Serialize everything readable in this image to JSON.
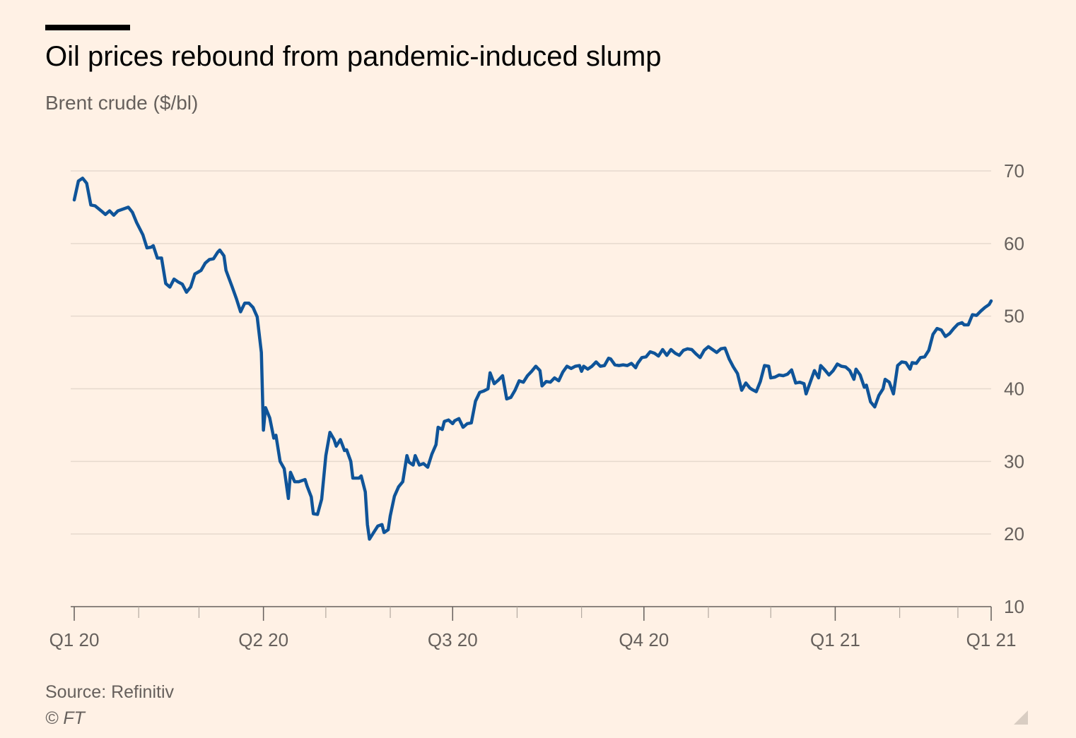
{
  "chart_data": {
    "type": "line",
    "title": "Oil prices rebound from pandemic-induced slump",
    "subtitle": "Brent crude ($/bl)",
    "ylabel": "",
    "xlabel": "",
    "ylim": [
      10,
      70
    ],
    "y_ticks": [
      "10",
      "20",
      "30",
      "40",
      "50",
      "60",
      "70"
    ],
    "y_axis_position": "right",
    "grid": true,
    "x_ticks": [
      {
        "label": "Q1 20",
        "date": "2020-01-01"
      },
      {
        "label": "Q2 20",
        "date": "2020-04-01"
      },
      {
        "label": "Q3 20",
        "date": "2020-07-01"
      },
      {
        "label": "Q4 20",
        "date": "2020-10-01"
      },
      {
        "label": "Q1 21",
        "date": "2021-01-01"
      },
      {
        "label": "Q1 21",
        "date": "2021-03-17"
      }
    ],
    "x_range": [
      "2020-01-01",
      "2021-03-17"
    ],
    "line_color": "#0f5499",
    "series": [
      {
        "name": "",
        "points": [
          [
            "2020-01-01",
            66
          ],
          [
            "2020-01-03",
            68.6
          ],
          [
            "2020-01-05",
            69
          ],
          [
            "2020-01-07",
            68.3
          ],
          [
            "2020-01-09",
            65.3
          ],
          [
            "2020-01-11",
            65.2
          ],
          [
            "2020-01-14",
            64.5
          ],
          [
            "2020-01-16",
            64
          ],
          [
            "2020-01-18",
            64.5
          ],
          [
            "2020-01-20",
            63.9
          ],
          [
            "2020-01-22",
            64.5
          ],
          [
            "2020-01-25",
            64.8
          ],
          [
            "2020-01-27",
            65
          ],
          [
            "2020-01-29",
            64.3
          ],
          [
            "2020-01-31",
            62.9
          ],
          [
            "2020-02-03",
            61.2
          ],
          [
            "2020-02-05",
            59.4
          ],
          [
            "2020-02-07",
            59.5
          ],
          [
            "2020-02-08",
            59.7
          ],
          [
            "2020-02-10",
            58
          ],
          [
            "2020-02-12",
            58
          ],
          [
            "2020-02-14",
            54.5
          ],
          [
            "2020-02-16",
            54
          ],
          [
            "2020-02-18",
            55.1
          ],
          [
            "2020-02-20",
            54.7
          ],
          [
            "2020-02-22",
            54.4
          ],
          [
            "2020-02-24",
            53.3
          ],
          [
            "2020-02-26",
            54
          ],
          [
            "2020-02-28",
            55.8
          ],
          [
            "2020-03-02",
            56.3
          ],
          [
            "2020-03-04",
            57.3
          ],
          [
            "2020-03-06",
            57.8
          ],
          [
            "2020-03-08",
            57.9
          ],
          [
            "2020-03-10",
            58.8
          ],
          [
            "2020-03-11",
            59.1
          ],
          [
            "2020-03-13",
            58.3
          ],
          [
            "2020-03-14",
            56.3
          ],
          [
            "2020-03-17",
            54
          ],
          [
            "2020-03-19",
            52.4
          ],
          [
            "2020-03-21",
            50.6
          ],
          [
            "2020-03-23",
            51.8
          ],
          [
            "2020-03-25",
            51.8
          ],
          [
            "2020-03-27",
            51.2
          ],
          [
            "2020-03-29",
            49.9
          ],
          [
            "2020-03-31",
            45
          ],
          [
            "2020-04-01",
            34.3
          ],
          [
            "2020-04-02",
            37.4
          ],
          [
            "2020-04-04",
            36
          ],
          [
            "2020-04-06",
            33.2
          ],
          [
            "2020-04-07",
            33.6
          ],
          [
            "2020-04-09",
            30
          ],
          [
            "2020-04-11",
            29
          ],
          [
            "2020-04-13",
            24.9
          ],
          [
            "2020-04-14",
            28.5
          ],
          [
            "2020-04-16",
            27.2
          ],
          [
            "2020-04-18",
            27.2
          ],
          [
            "2020-04-21",
            27.5
          ],
          [
            "2020-04-22",
            26.6
          ],
          [
            "2020-04-24",
            25.1
          ],
          [
            "2020-04-25",
            22.8
          ],
          [
            "2020-04-27",
            22.7
          ],
          [
            "2020-04-29",
            24.8
          ],
          [
            "2020-05-01",
            30.8
          ],
          [
            "2020-05-03",
            34
          ],
          [
            "2020-05-05",
            33
          ],
          [
            "2020-05-06",
            32.1
          ],
          [
            "2020-05-08",
            33
          ],
          [
            "2020-05-10",
            31.5
          ],
          [
            "2020-05-11",
            31.6
          ],
          [
            "2020-05-13",
            30
          ],
          [
            "2020-05-14",
            27.7
          ],
          [
            "2020-05-17",
            27.7
          ],
          [
            "2020-05-18",
            28
          ],
          [
            "2020-05-20",
            25.8
          ],
          [
            "2020-05-21",
            21.3
          ],
          [
            "2020-05-22",
            19.3
          ],
          [
            "2020-05-24",
            20.2
          ],
          [
            "2020-05-26",
            21.1
          ],
          [
            "2020-05-28",
            21.3
          ],
          [
            "2020-05-29",
            20.2
          ],
          [
            "2020-05-31",
            20.6
          ],
          [
            "2020-06-01",
            22.5
          ],
          [
            "2020-06-03",
            25.2
          ],
          [
            "2020-06-05",
            26.5
          ],
          [
            "2020-06-07",
            27.2
          ],
          [
            "2020-06-09",
            30.8
          ],
          [
            "2020-06-10",
            29.9
          ],
          [
            "2020-06-12",
            29.5
          ],
          [
            "2020-06-13",
            30.8
          ],
          [
            "2020-06-15",
            29.5
          ],
          [
            "2020-06-17",
            29.7
          ],
          [
            "2020-06-19",
            29.2
          ],
          [
            "2020-06-21",
            31
          ],
          [
            "2020-06-23",
            32.3
          ],
          [
            "2020-06-24",
            34.7
          ],
          [
            "2020-06-26",
            34.4
          ],
          [
            "2020-06-27",
            35.5
          ],
          [
            "2020-06-29",
            35.7
          ],
          [
            "2020-07-01",
            35.2
          ],
          [
            "2020-07-02",
            35.6
          ],
          [
            "2020-07-04",
            35.9
          ],
          [
            "2020-07-06",
            34.7
          ],
          [
            "2020-07-08",
            35.2
          ],
          [
            "2020-07-10",
            35.3
          ],
          [
            "2020-07-12",
            38.3
          ],
          [
            "2020-07-14",
            39.5
          ],
          [
            "2020-07-16",
            39.7
          ],
          [
            "2020-07-18",
            40
          ],
          [
            "2020-07-19",
            42.2
          ],
          [
            "2020-07-21",
            40.7
          ],
          [
            "2020-07-23",
            41.2
          ],
          [
            "2020-07-25",
            41.8
          ],
          [
            "2020-07-27",
            38.6
          ],
          [
            "2020-07-29",
            38.8
          ],
          [
            "2020-07-31",
            39.8
          ],
          [
            "2020-08-02",
            41.1
          ],
          [
            "2020-08-04",
            40.9
          ],
          [
            "2020-08-06",
            41.8
          ],
          [
            "2020-08-08",
            42.4
          ],
          [
            "2020-08-10",
            43.1
          ],
          [
            "2020-08-12",
            42.5
          ],
          [
            "2020-08-13",
            40.4
          ],
          [
            "2020-08-15",
            41
          ],
          [
            "2020-08-17",
            40.9
          ],
          [
            "2020-08-19",
            41.5
          ],
          [
            "2020-08-21",
            41.1
          ],
          [
            "2020-08-23",
            42.3
          ],
          [
            "2020-08-25",
            43.1
          ],
          [
            "2020-08-27",
            42.8
          ],
          [
            "2020-08-29",
            43.1
          ],
          [
            "2020-08-31",
            43.2
          ],
          [
            "2020-09-01",
            42.4
          ],
          [
            "2020-09-02",
            43.1
          ],
          [
            "2020-09-04",
            42.7
          ],
          [
            "2020-09-06",
            43.1
          ],
          [
            "2020-09-08",
            43.7
          ],
          [
            "2020-09-10",
            43.1
          ],
          [
            "2020-09-12",
            43.2
          ],
          [
            "2020-09-14",
            44.2
          ],
          [
            "2020-09-15",
            44.1
          ],
          [
            "2020-09-17",
            43.3
          ],
          [
            "2020-09-19",
            43.2
          ],
          [
            "2020-09-21",
            43.3
          ],
          [
            "2020-09-23",
            43.2
          ],
          [
            "2020-09-25",
            43.5
          ],
          [
            "2020-09-27",
            42.9
          ],
          [
            "2020-09-28",
            43.5
          ],
          [
            "2020-09-30",
            44.3
          ],
          [
            "2020-10-02",
            44.4
          ],
          [
            "2020-10-04",
            45.1
          ],
          [
            "2020-10-06",
            44.9
          ],
          [
            "2020-10-08",
            44.5
          ],
          [
            "2020-10-10",
            45.4
          ],
          [
            "2020-10-12",
            44.6
          ],
          [
            "2020-10-14",
            45.4
          ],
          [
            "2020-10-16",
            44.9
          ],
          [
            "2020-10-18",
            44.6
          ],
          [
            "2020-10-20",
            45.3
          ],
          [
            "2020-10-22",
            45.5
          ],
          [
            "2020-10-24",
            45.4
          ],
          [
            "2020-10-26",
            44.8
          ],
          [
            "2020-10-28",
            44.3
          ],
          [
            "2020-10-30",
            45.3
          ],
          [
            "2020-11-01",
            45.8
          ],
          [
            "2020-11-03",
            45.4
          ],
          [
            "2020-11-05",
            45
          ],
          [
            "2020-11-07",
            45.5
          ],
          [
            "2020-11-09",
            45.6
          ],
          [
            "2020-11-11",
            44.1
          ],
          [
            "2020-11-13",
            43
          ],
          [
            "2020-11-15",
            42.1
          ],
          [
            "2020-11-17",
            39.8
          ],
          [
            "2020-11-19",
            40.8
          ],
          [
            "2020-11-21",
            40.1
          ],
          [
            "2020-11-22",
            39.9
          ],
          [
            "2020-11-24",
            39.6
          ],
          [
            "2020-11-26",
            41
          ],
          [
            "2020-11-28",
            43.2
          ],
          [
            "2020-11-30",
            43.1
          ],
          [
            "2020-12-01",
            41.5
          ],
          [
            "2020-12-03",
            41.6
          ],
          [
            "2020-12-05",
            41.9
          ],
          [
            "2020-12-07",
            41.8
          ],
          [
            "2020-12-09",
            42
          ],
          [
            "2020-12-11",
            42.6
          ],
          [
            "2020-12-13",
            40.8
          ],
          [
            "2020-12-15",
            40.9
          ],
          [
            "2020-12-17",
            40.7
          ],
          [
            "2020-12-18",
            39.3
          ],
          [
            "2020-12-20",
            40.9
          ],
          [
            "2020-12-22",
            42.5
          ],
          [
            "2020-12-24",
            41.5
          ],
          [
            "2020-12-25",
            43.2
          ],
          [
            "2020-12-27",
            42.6
          ],
          [
            "2020-12-29",
            41.9
          ],
          [
            "2020-12-31",
            42.5
          ],
          [
            "2021-01-02",
            43.4
          ],
          [
            "2021-01-04",
            43.1
          ],
          [
            "2021-01-06",
            43
          ],
          [
            "2021-01-08",
            42.5
          ],
          [
            "2021-01-10",
            41.3
          ],
          [
            "2021-01-11",
            42.7
          ],
          [
            "2021-01-13",
            41.9
          ],
          [
            "2021-01-15",
            40.2
          ],
          [
            "2021-01-16",
            40.5
          ],
          [
            "2021-01-18",
            38.2
          ],
          [
            "2021-01-20",
            37.5
          ],
          [
            "2021-01-22",
            39.1
          ],
          [
            "2021-01-24",
            40
          ],
          [
            "2021-01-25",
            41.3
          ],
          [
            "2021-01-27",
            40.9
          ],
          [
            "2021-01-29",
            39.3
          ],
          [
            "2021-01-31",
            43.2
          ],
          [
            "2021-02-02",
            43.7
          ],
          [
            "2021-02-04",
            43.6
          ],
          [
            "2021-02-06",
            42.7
          ],
          [
            "2021-02-07",
            43.6
          ],
          [
            "2021-02-09",
            43.5
          ],
          [
            "2021-02-11",
            44.3
          ],
          [
            "2021-02-13",
            44.4
          ],
          [
            "2021-02-15",
            45.3
          ],
          [
            "2021-02-17",
            47.5
          ],
          [
            "2021-02-19",
            48.3
          ],
          [
            "2021-02-21",
            48.1
          ],
          [
            "2021-02-23",
            47.2
          ],
          [
            "2021-02-25",
            47.6
          ],
          [
            "2021-02-27",
            48.3
          ],
          [
            "2021-03-01",
            48.9
          ],
          [
            "2021-03-03",
            49.1
          ],
          [
            "2021-03-04",
            48.8
          ],
          [
            "2021-03-06",
            48.8
          ],
          [
            "2021-03-08",
            50.2
          ],
          [
            "2021-03-10",
            50.1
          ],
          [
            "2021-03-12",
            50.7
          ],
          [
            "2021-03-14",
            51.2
          ],
          [
            "2021-03-16",
            51.6
          ],
          [
            "2021-03-17",
            52.1
          ]
        ]
      }
    ]
  },
  "source": "Source: Refinitiv",
  "copyright": "© FT"
}
